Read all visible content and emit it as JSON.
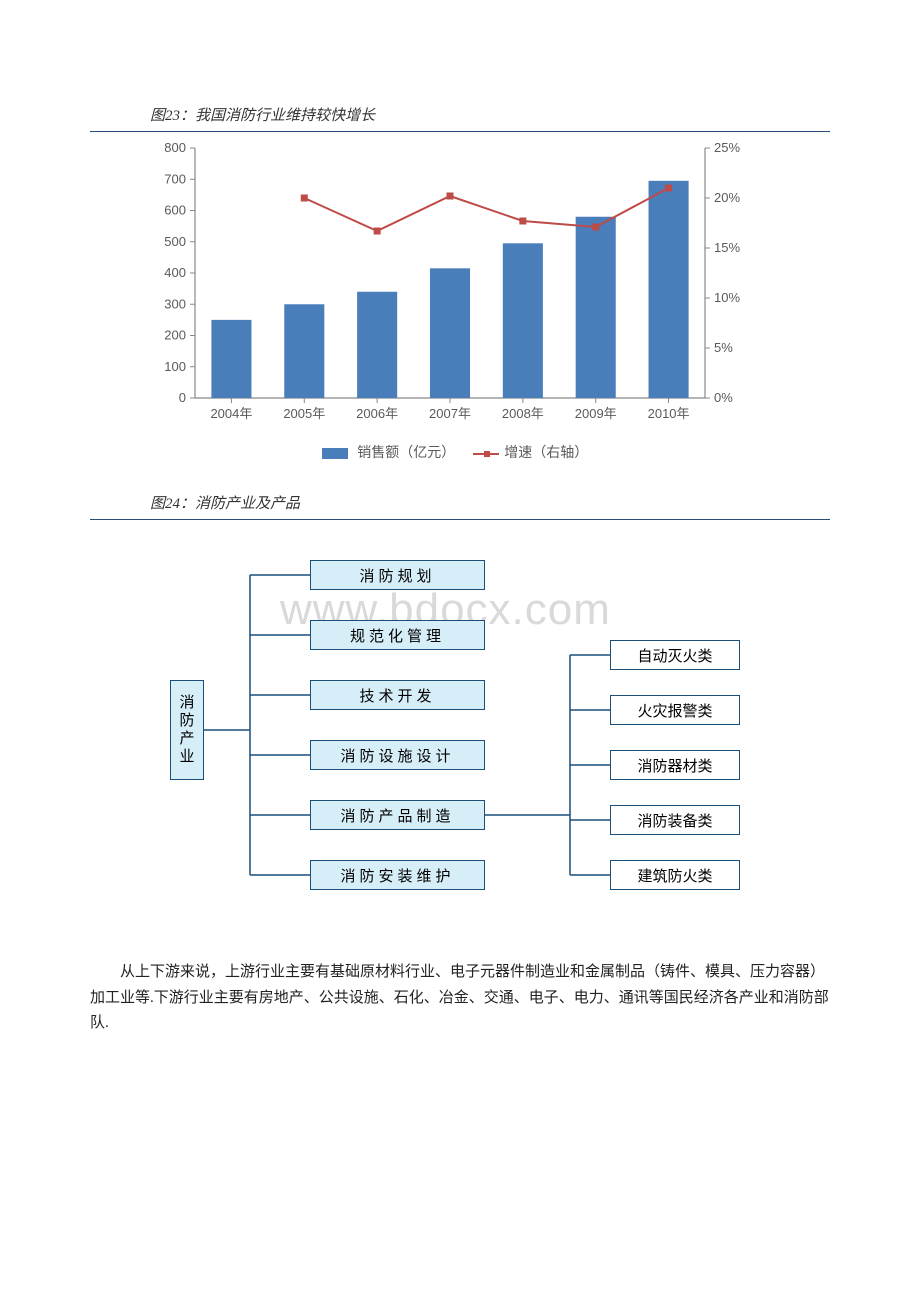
{
  "fig23": {
    "title": "图23：我国消防行业维持较快增长",
    "type": "bar+line",
    "categories": [
      "2004年",
      "2005年",
      "2006年",
      "2007年",
      "2008年",
      "2009年",
      "2010年"
    ],
    "bar_values": [
      250,
      300,
      340,
      415,
      495,
      580,
      695
    ],
    "line_values": [
      null,
      20.0,
      16.7,
      20.2,
      17.7,
      17.1,
      21.0
    ],
    "left_axis": {
      "min": 0,
      "max": 800,
      "step": 100
    },
    "right_axis": {
      "min": 0,
      "max": 0.25,
      "step": 0.05,
      "labels": [
        "0%",
        "5%",
        "10%",
        "15%",
        "20%",
        "25%"
      ]
    },
    "bar_color": "#4a7ebb",
    "line_color": "#be4b48",
    "axis_color": "#888888",
    "tick_label_color": "#5a5a5a",
    "tick_fontsize": 13,
    "legend_bar": "销售额（亿元）",
    "legend_line": "增速（右轴）"
  },
  "fig24": {
    "title": "图24：消防产业及产品",
    "watermark": "www.bdocx.com",
    "root_label": "消防产业",
    "mid_nodes": [
      "消防规划",
      "规范化管理",
      "技术开发",
      "消防设施设计",
      "消防产品制造",
      "消防安装维护"
    ],
    "right_nodes": [
      "自动灭火类",
      "火灾报警类",
      "消防器材类",
      "消防装备类",
      "建筑防火类"
    ],
    "node_fill": "#d6eef7",
    "node_border": "#1a4f7a",
    "right_fill": "#ffffff",
    "connector_color": "#1a4f7a"
  },
  "paragraph": "从上下游来说，上游行业主要有基础原材料行业、电子元器件制造业和金属制品（铸件、模具、压力容器）加工业等.下游行业主要有房地产、公共设施、石化、冶金、交通、电子、电力、通讯等国民经济各产业和消防部队."
}
